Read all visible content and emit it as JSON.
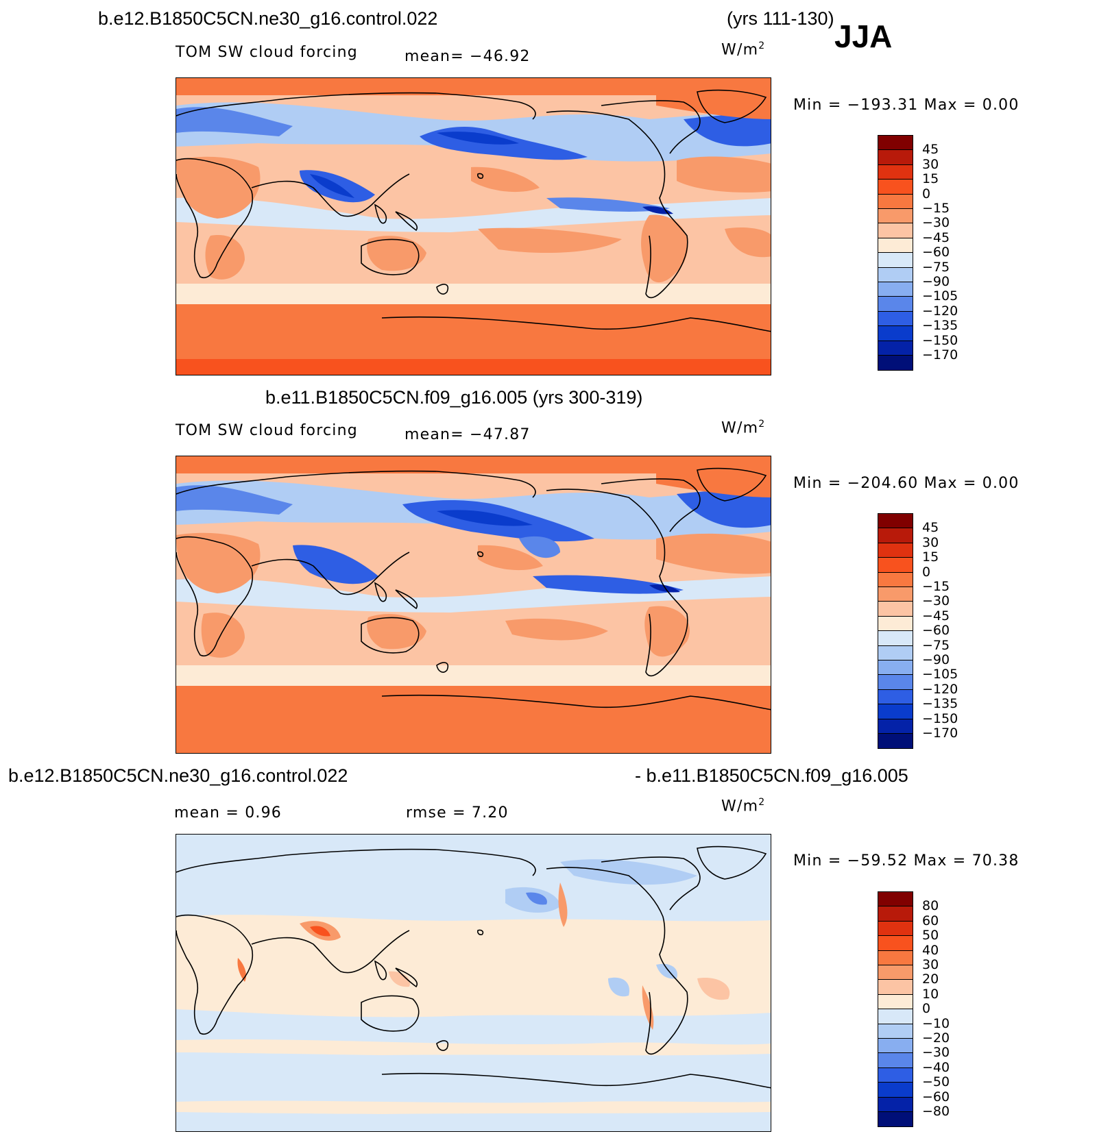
{
  "season": "JJA",
  "panel1": {
    "case_title": "b.e12.B1850C5CN.ne30_g16.control.022",
    "years": "(yrs 111-130)",
    "variable": "TOM SW cloud forcing",
    "mean_label": "mean= −46.92",
    "units_base": "W/m",
    "units_exp": "2",
    "minmax": "Min = −193.31 Max =    0.00"
  },
  "panel2": {
    "case_title": "b.e11.B1850C5CN.f09_g16.005 (yrs 300-319)",
    "variable": "TOM SW cloud forcing",
    "mean_label": "mean= −47.87",
    "units_base": "W/m",
    "units_exp": "2",
    "minmax": "Min = −204.60 Max =    0.00"
  },
  "panel3": {
    "case_title_left": "b.e12.B1850C5CN.ne30_g16.control.022",
    "case_title_right": "- b.e11.B1850C5CN.f09_g16.005",
    "mean_label": "mean =    0.96",
    "rmse_label": "rmse =    7.20",
    "units_base": "W/m",
    "units_exp": "2",
    "minmax": "Min = −59.52 Max =  70.38"
  },
  "chart_data": [
    {
      "type": "heatmap",
      "title": "TOM SW cloud forcing",
      "case": "b.e12.B1850C5CN.ne30_g16.control.022 (yrs 111-130)",
      "season": "JJA",
      "mean": -46.92,
      "min": -193.31,
      "max": 0.0,
      "units": "W/m2",
      "colorbar_levels": [
        "45",
        "30",
        "15",
        "0",
        "−15",
        "−30",
        "−45",
        "−60",
        "−75",
        "−90",
        "−105",
        "−120",
        "−135",
        "−150",
        "−170"
      ],
      "colorbar_colors": [
        "#800000",
        "#b81a0a",
        "#e03210",
        "#f8521e",
        "#f87840",
        "#f89a6a",
        "#fcc4a4",
        "#fdebd6",
        "#d8e8f8",
        "#b0cdf4",
        "#88aef0",
        "#5a86ea",
        "#2e5ee4",
        "#0a3ccc",
        "#0422a8",
        "#000f78"
      ]
    },
    {
      "type": "heatmap",
      "title": "TOM SW cloud forcing",
      "case": "b.e11.B1850C5CN.f09_g16.005 (yrs 300-319)",
      "season": "JJA",
      "mean": -47.87,
      "min": -204.6,
      "max": 0.0,
      "units": "W/m2",
      "colorbar_levels": [
        "45",
        "30",
        "15",
        "0",
        "−15",
        "−30",
        "−45",
        "−60",
        "−75",
        "−90",
        "−105",
        "−120",
        "−135",
        "−150",
        "−170"
      ],
      "colorbar_colors": [
        "#800000",
        "#b81a0a",
        "#e03210",
        "#f8521e",
        "#f87840",
        "#f89a6a",
        "#fcc4a4",
        "#fdebd6",
        "#d8e8f8",
        "#b0cdf4",
        "#88aef0",
        "#5a86ea",
        "#2e5ee4",
        "#0a3ccc",
        "#0422a8",
        "#000f78"
      ]
    },
    {
      "type": "heatmap",
      "title": "b.e12.B1850C5CN.ne30_g16.control.022 - b.e11.B1850C5CN.f09_g16.005",
      "season": "JJA",
      "mean": 0.96,
      "rmse": 7.2,
      "min": -59.52,
      "max": 70.38,
      "units": "W/m2",
      "colorbar_levels": [
        "80",
        "60",
        "50",
        "40",
        "30",
        "20",
        "10",
        "0",
        "−10",
        "−20",
        "−30",
        "−40",
        "−50",
        "−60",
        "−80"
      ],
      "colorbar_colors": [
        "#800000",
        "#b81a0a",
        "#e03210",
        "#f8521e",
        "#f87840",
        "#f89a6a",
        "#fcc4a4",
        "#fdebd6",
        "#d8e8f8",
        "#b0cdf4",
        "#88aef0",
        "#5a86ea",
        "#2e5ee4",
        "#0a3ccc",
        "#0422a8",
        "#000f78"
      ]
    }
  ]
}
